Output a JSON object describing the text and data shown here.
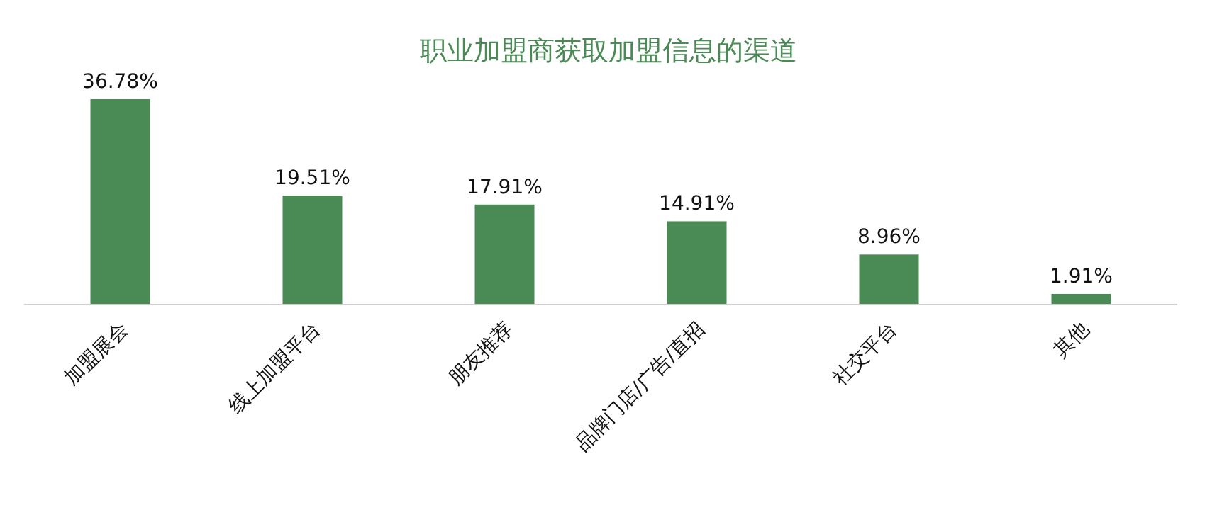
{
  "chart_data": {
    "type": "bar",
    "title": "职业加盟商获取加盟信息的渠道",
    "categories": [
      "加盟展会",
      "线上加盟平台",
      "朋友推荐",
      "品牌门店/广告/直招",
      "社交平台",
      "其他"
    ],
    "values": [
      36.78,
      19.51,
      17.91,
      14.91,
      8.96,
      1.91
    ],
    "value_labels": [
      "36.78%",
      "19.51%",
      "17.91%",
      "14.91%",
      "8.96%",
      "1.91%"
    ],
    "color": "#4a8a55"
  }
}
